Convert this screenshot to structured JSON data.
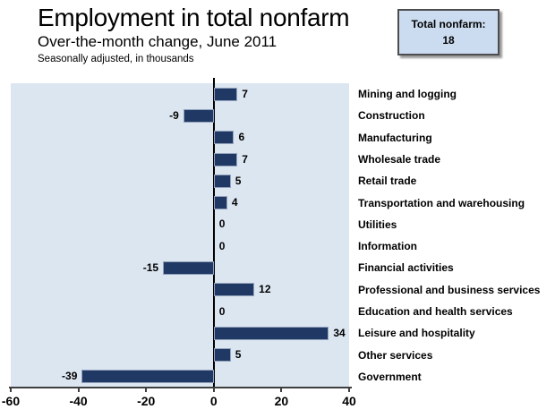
{
  "header": {
    "title": "Employment in total nonfarm",
    "subtitle": "Over-the-month change, June 2011",
    "note": "Seasonally adjusted, in thousands"
  },
  "total_box": {
    "label": "Total nonfarm:",
    "value": "18"
  },
  "chart_data": {
    "type": "bar",
    "orientation": "horizontal",
    "title": "Employment in total nonfarm",
    "subtitle": "Over-the-month change, June 2011",
    "units_note": "Seasonally adjusted, in thousands",
    "categories": [
      "Mining and logging",
      "Construction",
      "Manufacturing",
      "Wholesale trade",
      "Retail trade",
      "Transportation and warehousing",
      "Utilities",
      "Information",
      "Financial activities",
      "Professional and business services",
      "Education and health services",
      "Leisure and hospitality",
      "Other services",
      "Government"
    ],
    "values": [
      7,
      -9,
      6,
      7,
      5,
      4,
      0,
      0,
      -15,
      12,
      0,
      34,
      5,
      -39
    ],
    "xlim": [
      -60,
      40
    ],
    "x_ticks": [
      -60,
      -40,
      -20,
      0,
      20,
      40
    ],
    "grid": false,
    "legend": false,
    "value_labels": true,
    "colors": {
      "bar": "#1f3864",
      "plot_background": "#dce6f1",
      "axis_line": "#3f3f3f",
      "zero_line": "#000000",
      "label_text": "#000000"
    }
  }
}
